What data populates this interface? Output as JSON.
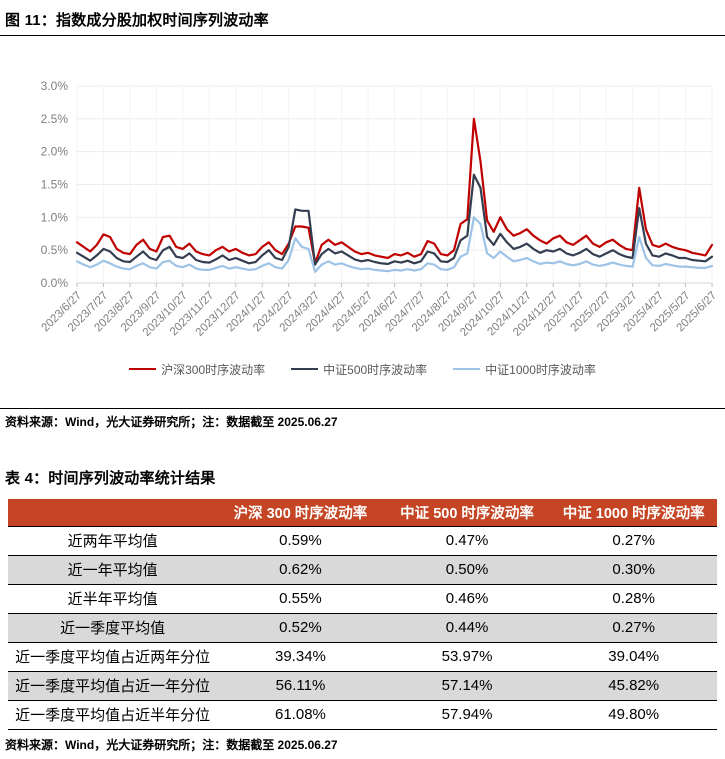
{
  "figure": {
    "title": "图 11：指数成分股加权时间序列波动率",
    "source": "资料来源：Wind，光大证券研究所；注：数据截至 2025.06.27"
  },
  "chart_data": {
    "type": "line",
    "title": "指数成分股加权时间序列波动率",
    "xlabel": "",
    "ylabel": "",
    "ylim": [
      0,
      3.0
    ],
    "grid": true,
    "legend_position": "bottom",
    "y_ticks": [
      "0.0%",
      "0.5%",
      "1.0%",
      "1.5%",
      "2.0%",
      "2.5%",
      "3.0%"
    ],
    "x_tick_labels": [
      "2023/6/27",
      "2023/7/27",
      "2023/8/27",
      "2023/9/27",
      "2023/10/27",
      "2023/11/27",
      "2023/12/27",
      "2024/1/27",
      "2024/2/27",
      "2024/3/27",
      "2024/4/27",
      "2024/5/27",
      "2024/6/27",
      "2024/7/27",
      "2024/8/27",
      "2024/9/27",
      "2024/10/27",
      "2024/11/27",
      "2024/12/27",
      "2025/1/27",
      "2025/2/27",
      "2025/3/27",
      "2025/4/27",
      "2025/5/27",
      "2025/6/27"
    ],
    "unit": "percent",
    "series": [
      {
        "name": "沪深300时序波动率",
        "color": "#C00000",
        "values": [
          0.62,
          0.55,
          0.48,
          0.58,
          0.74,
          0.7,
          0.52,
          0.46,
          0.44,
          0.58,
          0.66,
          0.52,
          0.48,
          0.7,
          0.72,
          0.55,
          0.52,
          0.6,
          0.48,
          0.44,
          0.42,
          0.5,
          0.55,
          0.48,
          0.52,
          0.46,
          0.42,
          0.44,
          0.55,
          0.62,
          0.5,
          0.44,
          0.6,
          0.86,
          0.86,
          0.84,
          0.3,
          0.58,
          0.66,
          0.58,
          0.62,
          0.55,
          0.48,
          0.44,
          0.46,
          0.42,
          0.4,
          0.38,
          0.44,
          0.42,
          0.46,
          0.4,
          0.44,
          0.64,
          0.6,
          0.44,
          0.42,
          0.5,
          0.9,
          0.97,
          2.5,
          1.85,
          0.95,
          0.78,
          1.0,
          0.82,
          0.72,
          0.76,
          0.82,
          0.72,
          0.65,
          0.6,
          0.68,
          0.72,
          0.62,
          0.58,
          0.65,
          0.72,
          0.6,
          0.55,
          0.62,
          0.66,
          0.58,
          0.52,
          0.5,
          1.45,
          0.82,
          0.58,
          0.55,
          0.6,
          0.55,
          0.52,
          0.5,
          0.46,
          0.44,
          0.42,
          0.58
        ]
      },
      {
        "name": "中证500时序波动率",
        "color": "#333F50",
        "values": [
          0.46,
          0.4,
          0.34,
          0.42,
          0.52,
          0.48,
          0.38,
          0.33,
          0.32,
          0.4,
          0.48,
          0.38,
          0.35,
          0.5,
          0.55,
          0.4,
          0.38,
          0.45,
          0.35,
          0.32,
          0.31,
          0.36,
          0.42,
          0.35,
          0.38,
          0.34,
          0.3,
          0.32,
          0.42,
          0.5,
          0.38,
          0.35,
          0.55,
          1.12,
          1.1,
          1.1,
          0.28,
          0.44,
          0.52,
          0.45,
          0.48,
          0.42,
          0.36,
          0.33,
          0.35,
          0.32,
          0.3,
          0.29,
          0.33,
          0.31,
          0.34,
          0.3,
          0.33,
          0.48,
          0.45,
          0.33,
          0.32,
          0.38,
          0.65,
          0.72,
          1.65,
          1.45,
          0.7,
          0.58,
          0.75,
          0.62,
          0.52,
          0.55,
          0.6,
          0.52,
          0.46,
          0.5,
          0.48,
          0.52,
          0.45,
          0.42,
          0.46,
          0.52,
          0.44,
          0.4,
          0.45,
          0.5,
          0.44,
          0.4,
          0.38,
          1.14,
          0.6,
          0.42,
          0.4,
          0.45,
          0.42,
          0.38,
          0.38,
          0.35,
          0.34,
          0.33,
          0.4
        ]
      },
      {
        "name": "中证1000时序波动率",
        "color": "#9DC3E6",
        "values": [
          0.33,
          0.28,
          0.24,
          0.28,
          0.34,
          0.3,
          0.25,
          0.22,
          0.21,
          0.26,
          0.3,
          0.24,
          0.22,
          0.32,
          0.34,
          0.26,
          0.24,
          0.28,
          0.22,
          0.2,
          0.2,
          0.23,
          0.26,
          0.22,
          0.24,
          0.22,
          0.2,
          0.21,
          0.26,
          0.3,
          0.24,
          0.22,
          0.35,
          0.68,
          0.55,
          0.52,
          0.17,
          0.28,
          0.33,
          0.28,
          0.3,
          0.26,
          0.23,
          0.21,
          0.22,
          0.2,
          0.19,
          0.18,
          0.2,
          0.19,
          0.21,
          0.19,
          0.21,
          0.3,
          0.28,
          0.21,
          0.2,
          0.24,
          0.4,
          0.45,
          1.0,
          0.9,
          0.45,
          0.38,
          0.48,
          0.4,
          0.33,
          0.35,
          0.38,
          0.33,
          0.29,
          0.31,
          0.3,
          0.33,
          0.29,
          0.27,
          0.29,
          0.33,
          0.28,
          0.26,
          0.28,
          0.31,
          0.28,
          0.26,
          0.25,
          0.7,
          0.38,
          0.27,
          0.26,
          0.29,
          0.27,
          0.25,
          0.25,
          0.24,
          0.23,
          0.23,
          0.26
        ]
      }
    ]
  },
  "table": {
    "title": "表 4：时间序列波动率统计结果",
    "header_bg": "#C44423",
    "alt_row_bg": "#D9D9D9",
    "columns": [
      "",
      "沪深 300 时序波动率",
      "中证 500 时序波动率",
      "中证 1000 时序波动率"
    ],
    "rows": [
      {
        "label": "近两年平均值",
        "values": [
          "0.59%",
          "0.47%",
          "0.27%"
        ]
      },
      {
        "label": "近一年平均值",
        "values": [
          "0.62%",
          "0.50%",
          "0.30%"
        ]
      },
      {
        "label": "近半年平均值",
        "values": [
          "0.55%",
          "0.46%",
          "0.28%"
        ]
      },
      {
        "label": "近一季度平均值",
        "values": [
          "0.52%",
          "0.44%",
          "0.27%"
        ]
      },
      {
        "label": "近一季度平均值占近两年分位",
        "values": [
          "39.34%",
          "53.97%",
          "39.04%"
        ]
      },
      {
        "label": "近一季度平均值占近一年分位",
        "values": [
          "56.11%",
          "57.14%",
          "45.82%"
        ]
      },
      {
        "label": "近一季度平均值占近半年分位",
        "values": [
          "61.08%",
          "57.94%",
          "49.80%"
        ]
      }
    ],
    "source": "资料来源：Wind，光大证券研究所；注：数据截至 2025.06.27"
  }
}
